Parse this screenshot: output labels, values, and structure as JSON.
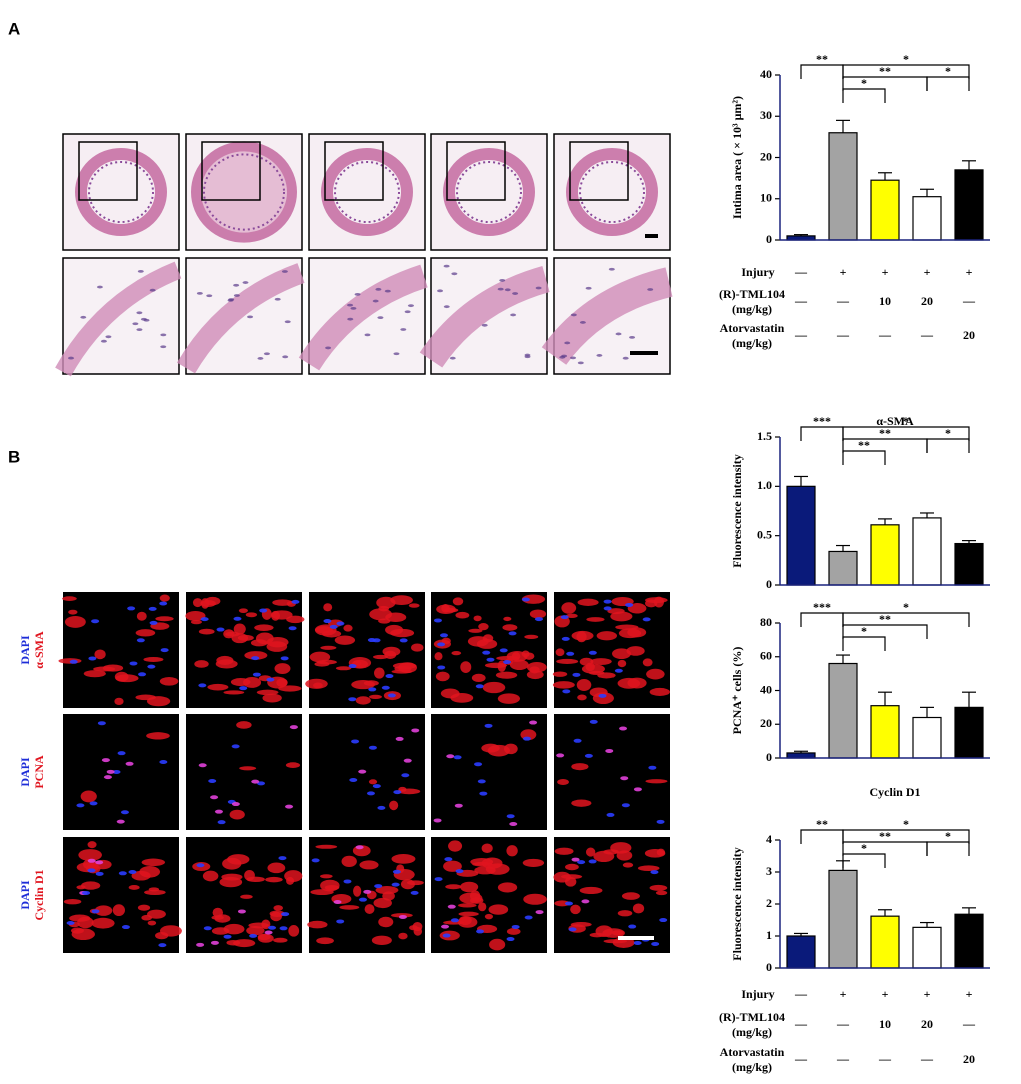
{
  "panel_labels": [
    "A",
    "B"
  ],
  "image_rows_b": [
    {
      "stain1": "DAPI",
      "stain2": "α-SMA"
    },
    {
      "stain1": "DAPI",
      "stain2": "PCNA"
    },
    {
      "stain1": "DAPI",
      "stain2": "Cyclin D1"
    }
  ],
  "chart_data": [
    {
      "type": "bar",
      "ylabel": "Intima area ( × 10³ μm²)",
      "categories": [
        null,
        null,
        null,
        null,
        null
      ],
      "values": [
        1,
        26,
        14.5,
        10.5,
        17
      ],
      "errors": [
        0.3,
        3,
        1.8,
        1.8,
        2.2
      ],
      "colors": [
        "#0a1a7a",
        "#a3a3a3",
        "#ffff00",
        "#ffffff",
        "#000000"
      ],
      "ylim": [
        0,
        40
      ],
      "yticks": [
        0,
        10,
        20,
        30,
        40
      ],
      "annotations": [
        {
          "text": "**",
          "pair": [
            0,
            1
          ]
        },
        {
          "text": "*",
          "pair": [
            1,
            2
          ]
        },
        {
          "text": "**",
          "pair": [
            1,
            3
          ]
        },
        {
          "text": "*",
          "pair": [
            1,
            4
          ]
        },
        {
          "text": "*",
          "pair": [
            3,
            4
          ]
        }
      ]
    },
    {
      "type": "bar",
      "title": "α-SMA",
      "ylabel": "Fluorescence intensity",
      "categories": [
        null,
        null,
        null,
        null,
        null
      ],
      "values": [
        1.0,
        0.34,
        0.61,
        0.68,
        0.42
      ],
      "errors": [
        0.1,
        0.06,
        0.06,
        0.05,
        0.03
      ],
      "colors": [
        "#0a1a7a",
        "#a3a3a3",
        "#ffff00",
        "#ffffff",
        "#000000"
      ],
      "ylim": [
        0,
        1.5
      ],
      "yticks": [
        0,
        0.5,
        {
          "value": 1,
          "label": "1.0"
        },
        1.5
      ],
      "annotations": [
        {
          "text": "***",
          "pair": [
            0,
            1
          ]
        },
        {
          "text": "**",
          "pair": [
            1,
            2
          ]
        },
        {
          "text": "**",
          "pair": [
            1,
            3
          ]
        },
        {
          "text": "*",
          "pair": [
            1,
            4
          ]
        },
        {
          "text": "*",
          "pair": [
            3,
            4
          ]
        }
      ]
    },
    {
      "type": "bar",
      "ylabel": "PCNA⁺ cells (%)",
      "categories": [
        null,
        null,
        null,
        null,
        null
      ],
      "values": [
        3,
        56,
        31,
        24,
        30
      ],
      "errors": [
        1,
        5,
        8,
        6,
        9
      ],
      "colors": [
        "#0a1a7a",
        "#a3a3a3",
        "#ffff00",
        "#ffffff",
        "#000000"
      ],
      "ylim": [
        0,
        80
      ],
      "yticks": [
        0,
        20,
        40,
        60,
        80
      ],
      "annotations": [
        {
          "text": "***",
          "pair": [
            0,
            1
          ]
        },
        {
          "text": "*",
          "pair": [
            1,
            2
          ]
        },
        {
          "text": "**",
          "pair": [
            1,
            3
          ]
        },
        {
          "text": "*",
          "pair": [
            1,
            4
          ]
        }
      ]
    },
    {
      "type": "bar",
      "title": "Cyclin  D1",
      "ylabel": "Fluorescence intensity",
      "categories": [
        null,
        null,
        null,
        null,
        null
      ],
      "values": [
        1.0,
        3.05,
        1.62,
        1.27,
        1.68
      ],
      "errors": [
        0.08,
        0.3,
        0.2,
        0.15,
        0.2
      ],
      "colors": [
        "#0a1a7a",
        "#a3a3a3",
        "#ffff00",
        "#ffffff",
        "#000000"
      ],
      "ylim": [
        0,
        4
      ],
      "yticks": [
        0,
        1,
        2,
        3,
        4
      ],
      "annotations": [
        {
          "text": "**",
          "pair": [
            0,
            1
          ]
        },
        {
          "text": "*",
          "pair": [
            1,
            2
          ]
        },
        {
          "text": "**",
          "pair": [
            1,
            3
          ]
        },
        {
          "text": "*",
          "pair": [
            1,
            4
          ]
        },
        {
          "text": "*",
          "pair": [
            3,
            4
          ]
        }
      ]
    }
  ],
  "treatments": [
    {
      "rows": [
        {
          "label": [
            "Injury"
          ],
          "cells": [
            "—",
            "+",
            "+",
            "+",
            "+"
          ]
        },
        {
          "label": [
            "(R)-TML104",
            "(mg/kg)"
          ],
          "cells": [
            "—",
            "—",
            "10",
            "20",
            "—"
          ]
        },
        {
          "label": [
            "Atorvastatin",
            "(mg/kg)"
          ],
          "cells": [
            "—",
            "—",
            "—",
            "—",
            "20"
          ]
        }
      ]
    },
    {
      "rows": [
        {
          "label": [
            "Injury"
          ],
          "cells": [
            "—",
            "+",
            "+",
            "+",
            "+"
          ]
        },
        {
          "label": [
            "(R)-TML104",
            "(mg/kg)"
          ],
          "cells": [
            "—",
            "—",
            "10",
            "20",
            "—"
          ]
        },
        {
          "label": [
            "Atorvastatin",
            "(mg/kg)"
          ],
          "cells": [
            "—",
            "—",
            "—",
            "—",
            "20"
          ]
        }
      ]
    }
  ]
}
